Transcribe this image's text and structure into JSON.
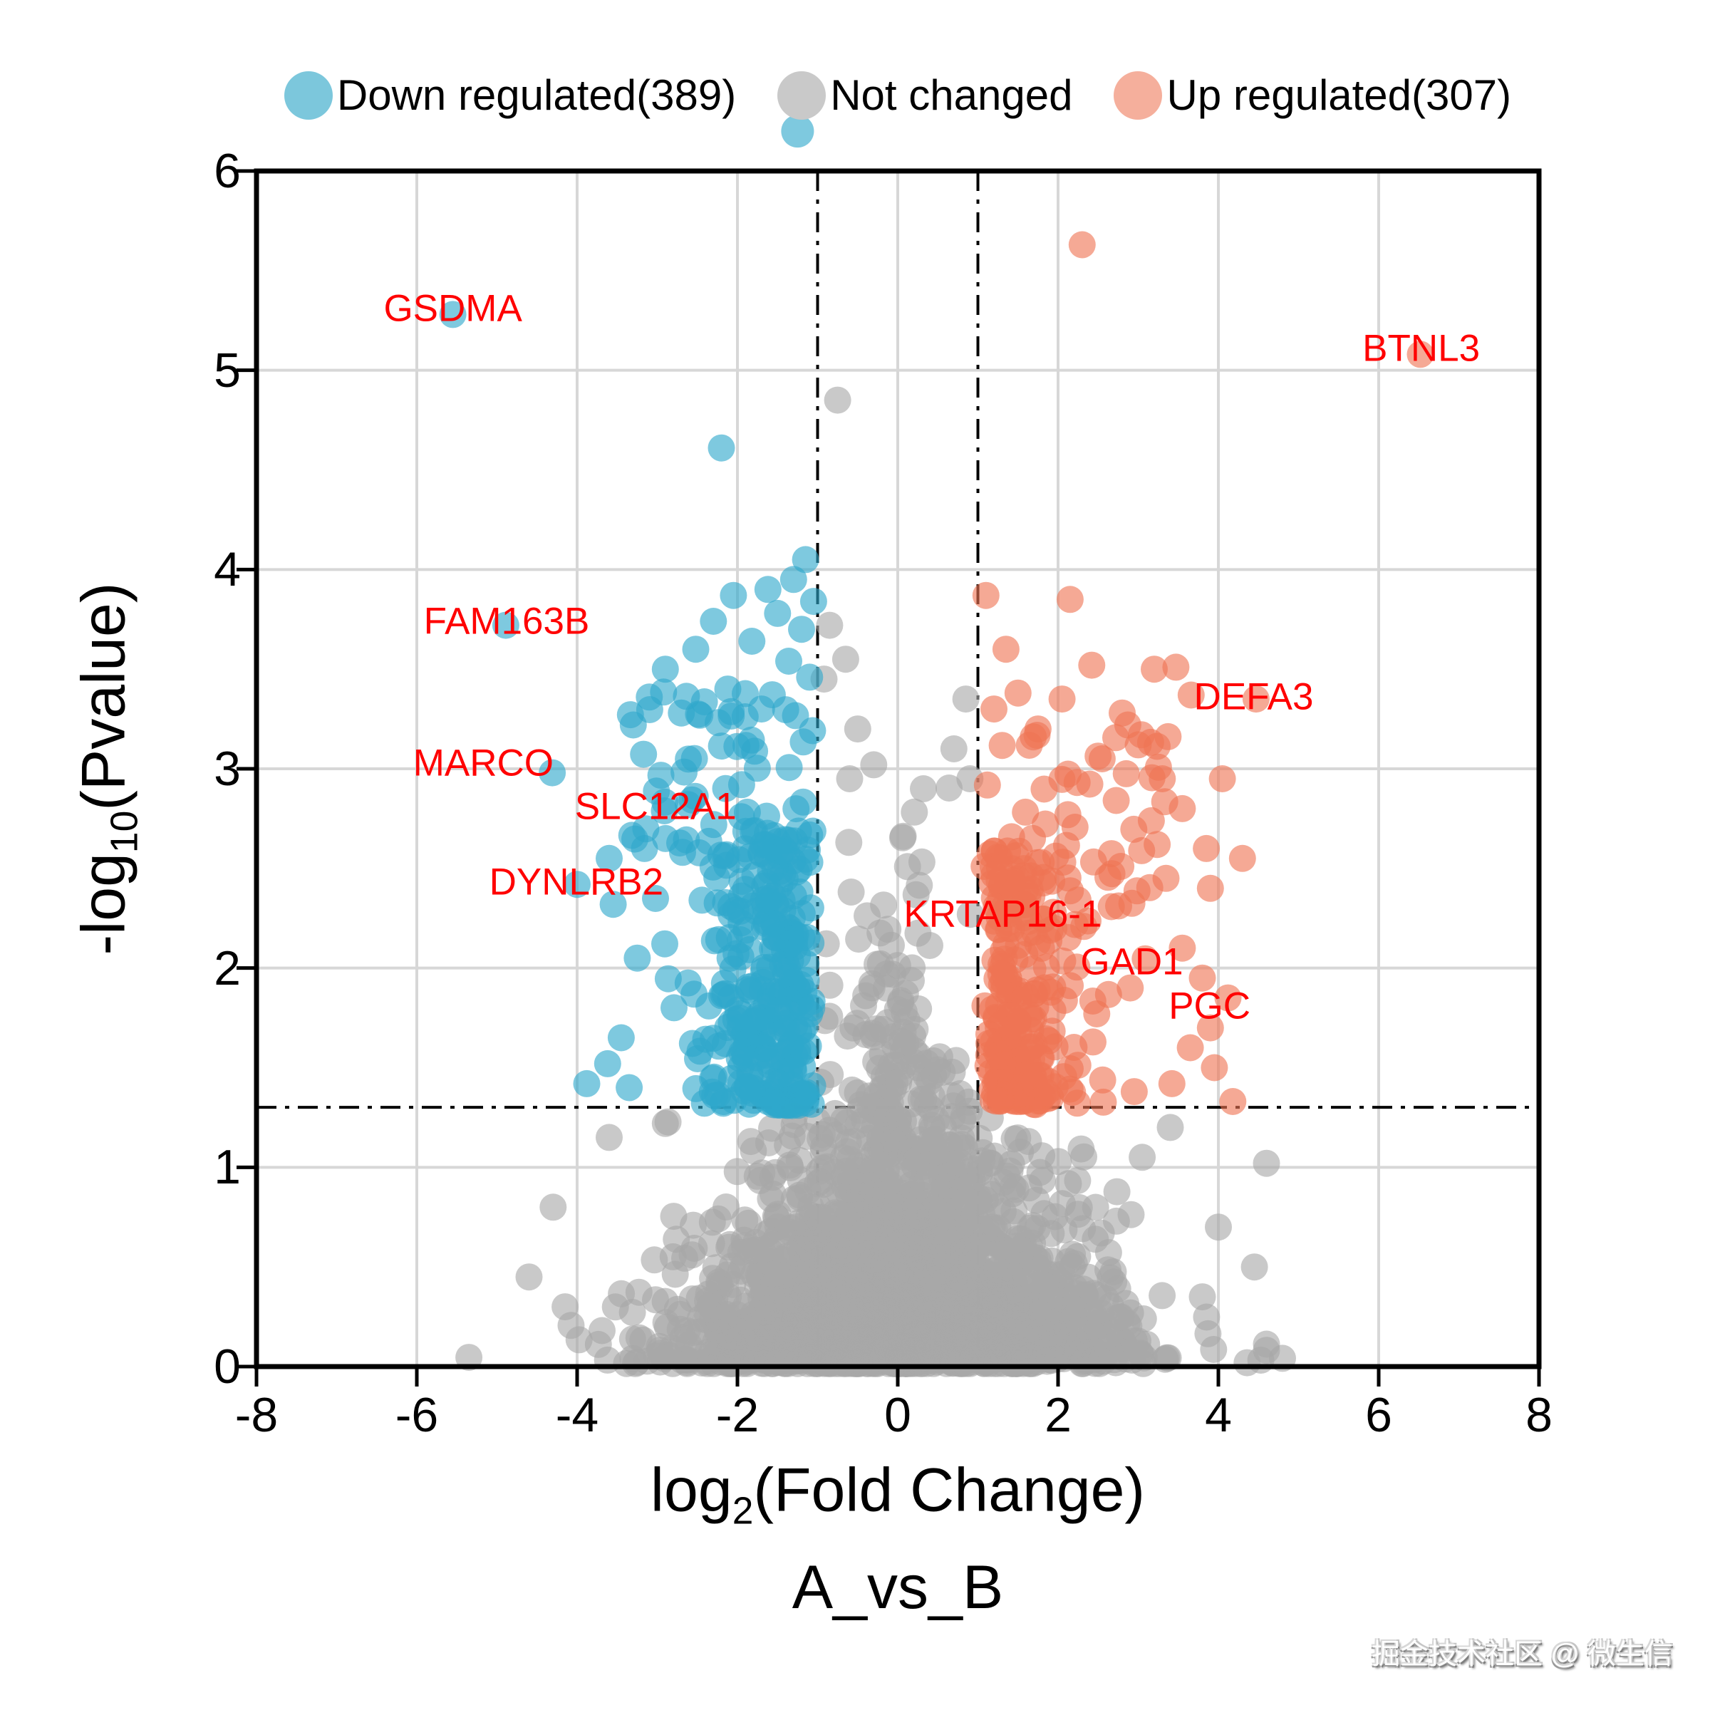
{
  "legend": {
    "items": [
      {
        "key": "down",
        "label": "Down regulated(389)",
        "dot_color": "#7cc7dc"
      },
      {
        "key": "ns",
        "label": "Not changed",
        "dot_color": "#c9c9c9"
      },
      {
        "key": "up",
        "label": "Up regulated(307)",
        "dot_color": "#f5af9c"
      }
    ]
  },
  "watermark": "掘金技术社区 @ 微生信",
  "chart_data": {
    "type": "scatter",
    "title": "A_vs_B",
    "xlabel": "log2(Fold Change)",
    "ylabel": "-log10(Pvalue)",
    "xlabel_parts": {
      "pre": "log",
      "sub": "2",
      "post": "(Fold Change)"
    },
    "ylabel_parts": {
      "pre": "-log",
      "sub": "10",
      "post": "(Pvalue)"
    },
    "xlim": [
      -8,
      8
    ],
    "ylim": [
      0,
      6
    ],
    "x_ticks": [
      -8,
      -6,
      -4,
      -2,
      0,
      2,
      4,
      6,
      8
    ],
    "y_ticks": [
      0,
      1,
      2,
      3,
      4,
      5,
      6
    ],
    "grid": true,
    "grid_color": "#d7d7d7",
    "label_color": "#ff0000",
    "thresholds": {
      "vlines_x": [
        -1,
        1
      ],
      "hline_y": 1.301,
      "line_color": "#000000"
    },
    "series": [
      {
        "key": "down",
        "name": "Down regulated",
        "count": 389,
        "base_color": "#2fa8cc"
      },
      {
        "key": "ns",
        "name": "Not changed",
        "base_color": "#a8a8a8"
      },
      {
        "key": "up",
        "name": "Up regulated",
        "count": 307,
        "base_color": "#ef7454"
      }
    ],
    "labeled_genes": [
      {
        "gene": "GSDMA",
        "series": "down",
        "point": [
          -5.55,
          5.28
        ],
        "label_at": [
          -5.55,
          5.31
        ]
      },
      {
        "gene": "BTNL3",
        "series": "up",
        "point": [
          6.52,
          5.08
        ],
        "label_at": [
          6.53,
          5.11
        ]
      },
      {
        "gene": "FAM163B",
        "series": "down",
        "point": [
          -4.89,
          3.72
        ],
        "label_at": [
          -4.88,
          3.74
        ]
      },
      {
        "gene": "MARCO",
        "series": "down",
        "point": [
          -4.31,
          2.98
        ],
        "label_at": [
          -5.17,
          3.03
        ]
      },
      {
        "gene": "SLC12A1",
        "series": "down",
        "point": [
          -3.16,
          2.6
        ],
        "label_at": [
          -3.02,
          2.81
        ]
      },
      {
        "gene": "DYNLRB2",
        "series": "down",
        "point": [
          -4.0,
          2.42
        ],
        "label_at": [
          -4.01,
          2.43
        ]
      },
      {
        "gene": "DEFA3",
        "series": "up",
        "point": [
          3.66,
          3.37
        ],
        "label_at": [
          4.44,
          3.36
        ]
      },
      {
        "gene": "KRTAP16-1",
        "series": "up",
        "point": [
          1.35,
          2.12
        ],
        "label_at": [
          1.31,
          2.27
        ]
      },
      {
        "gene": "GAD1",
        "series": "up",
        "point": [
          2.9,
          1.9
        ],
        "label_at": [
          2.92,
          2.03
        ]
      },
      {
        "gene": "PGC",
        "series": "up",
        "point": [
          3.9,
          1.7
        ],
        "label_at": [
          3.89,
          1.81
        ]
      }
    ],
    "extra_points": {
      "down": [
        [
          -1.25,
          6.2,
          23
        ],
        [
          -2.2,
          4.61
        ],
        [
          -1.15,
          4.05
        ],
        [
          -1.3,
          3.95
        ],
        [
          -1.62,
          3.9
        ],
        [
          -2.05,
          3.87
        ],
        [
          -1.05,
          3.84
        ],
        [
          -1.5,
          3.78
        ],
        [
          -2.3,
          3.74
        ],
        [
          -1.2,
          3.7
        ],
        [
          -1.82,
          3.64
        ],
        [
          -2.52,
          3.6
        ],
        [
          -1.36,
          3.54
        ],
        [
          -2.9,
          3.5
        ],
        [
          -1.1,
          3.46
        ],
        [
          -2.12,
          3.4
        ],
        [
          -3.1,
          3.36
        ],
        [
          -1.7,
          3.3
        ],
        [
          -2.7,
          3.28
        ],
        [
          -3.3,
          3.22
        ],
        [
          -3.62,
          1.52
        ],
        [
          -3.45,
          1.65
        ],
        [
          -3.88,
          1.42
        ],
        [
          -3.35,
          1.4
        ],
        [
          -3.55,
          2.32
        ],
        [
          -3.25,
          2.05
        ],
        [
          -3.6,
          2.55
        ]
      ],
      "up": [
        [
          2.3,
          5.63
        ],
        [
          1.1,
          3.87
        ],
        [
          2.15,
          3.85
        ],
        [
          2.42,
          3.52
        ],
        [
          1.5,
          3.38
        ],
        [
          3.2,
          3.5
        ],
        [
          3.47,
          3.51
        ],
        [
          4.47,
          3.35
        ],
        [
          2.8,
          3.28
        ],
        [
          1.2,
          3.3
        ],
        [
          3.0,
          3.12
        ],
        [
          2.87,
          3.22
        ],
        [
          2.55,
          3.05
        ],
        [
          3.3,
          2.95
        ],
        [
          3.55,
          2.8
        ],
        [
          3.85,
          2.6
        ],
        [
          1.75,
          3.2
        ],
        [
          2.05,
          3.35
        ],
        [
          1.35,
          3.6
        ],
        [
          3.55,
          2.1
        ],
        [
          3.8,
          1.95
        ],
        [
          4.12,
          1.85
        ],
        [
          3.65,
          1.6
        ],
        [
          3.95,
          1.5
        ],
        [
          4.18,
          1.33
        ],
        [
          2.95,
          1.38
        ],
        [
          3.42,
          1.42
        ],
        [
          4.3,
          2.55
        ],
        [
          3.9,
          2.4
        ],
        [
          4.05,
          2.95
        ]
      ],
      "ns": [
        [
          -0.75,
          4.85
        ],
        [
          -0.85,
          3.72
        ],
        [
          -0.65,
          3.55
        ],
        [
          -0.92,
          3.45
        ],
        [
          -0.5,
          3.2
        ],
        [
          0.85,
          3.35
        ],
        [
          0.7,
          3.1
        ],
        [
          0.9,
          2.95
        ],
        [
          -0.3,
          3.02
        ],
        [
          0.32,
          2.9
        ],
        [
          -0.6,
          2.95
        ],
        [
          3.4,
          1.2
        ],
        [
          -3.6,
          1.15
        ],
        [
          3.05,
          1.05
        ],
        [
          -2.9,
          1.22
        ],
        [
          4.0,
          0.7
        ],
        [
          -4.3,
          0.8
        ],
        [
          4.45,
          0.5
        ],
        [
          -4.6,
          0.45
        ],
        [
          3.8,
          0.35
        ],
        [
          -4.15,
          0.3
        ],
        [
          4.6,
          1.02
        ]
      ]
    },
    "generated": {
      "seed": 42,
      "ns_core": 2300,
      "ns_bottom_row": 48,
      "down_band": 300,
      "down_mid": 55,
      "up_band": 230,
      "up_mid": 48,
      "point_radius": 19,
      "point_opacity": 0.62
    }
  }
}
